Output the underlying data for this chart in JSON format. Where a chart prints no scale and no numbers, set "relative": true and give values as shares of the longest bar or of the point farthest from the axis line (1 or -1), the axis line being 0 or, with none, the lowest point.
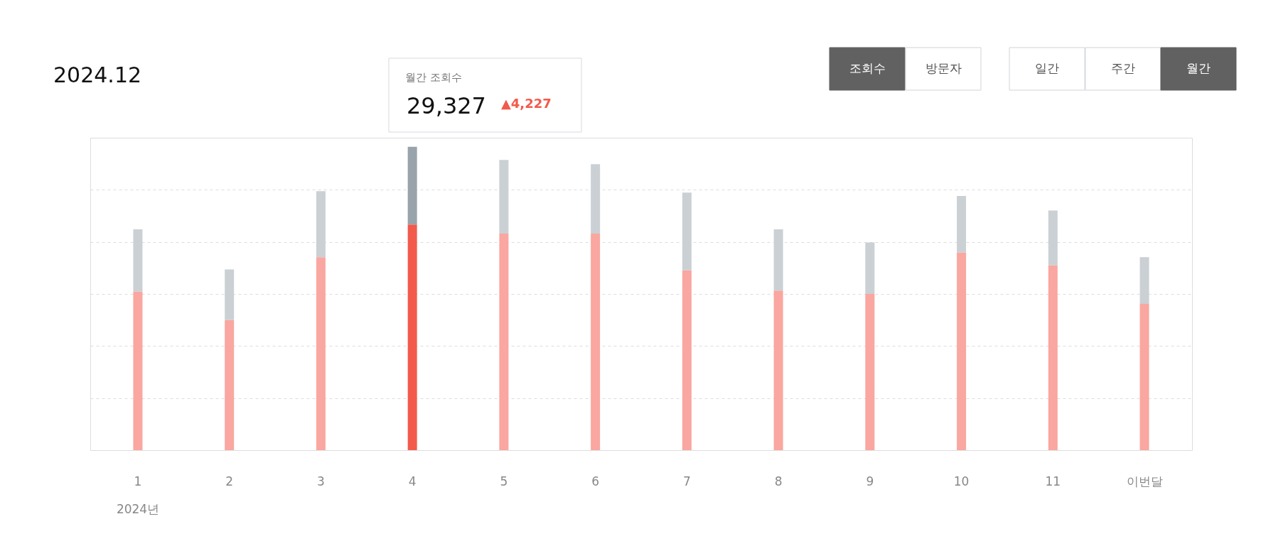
{
  "chart_data": {
    "type": "bar",
    "title": "2024.12",
    "relative": true,
    "stacked": true,
    "grid": "y",
    "categories": [
      "1",
      "2",
      "3",
      "4",
      "5",
      "6",
      "7",
      "8",
      "9",
      "10",
      "11",
      "이번달"
    ],
    "series": [
      {
        "colors": [
          "#f9a7a0",
          "#f9a7a0",
          "#f9a7a0",
          "#f25a4b",
          "#f9a7a0",
          "#f9a7a0",
          "#f9a7a0",
          "#f9a7a0",
          "#f9a7a0",
          "#f9a7a0",
          "#f9a7a0",
          "#f9a7a0"
        ],
        "values": [
          0.523,
          0.429,
          0.636,
          0.744,
          0.714,
          0.714,
          0.593,
          0.526,
          0.515,
          0.652,
          0.609,
          0.482
        ]
      },
      {
        "colors": [
          "#cbd0d4",
          "#cbd0d4",
          "#cbd0d4",
          "#99a3ab",
          "#cbd0d4",
          "#cbd0d4",
          "#cbd0d4",
          "#cbd0d4",
          "#cbd0d4",
          "#cbd0d4",
          "#cbd0d4",
          "#cbd0d4"
        ],
        "values": [
          0.205,
          0.167,
          0.218,
          0.256,
          0.243,
          0.229,
          0.256,
          0.202,
          0.17,
          0.186,
          0.181,
          0.154
        ]
      }
    ],
    "annotations": [
      "조회수",
      "방문자",
      "일간",
      "주간",
      "월간",
      "월간 조회수",
      "29,327",
      "▲4,227",
      "2024년"
    ]
  }
}
